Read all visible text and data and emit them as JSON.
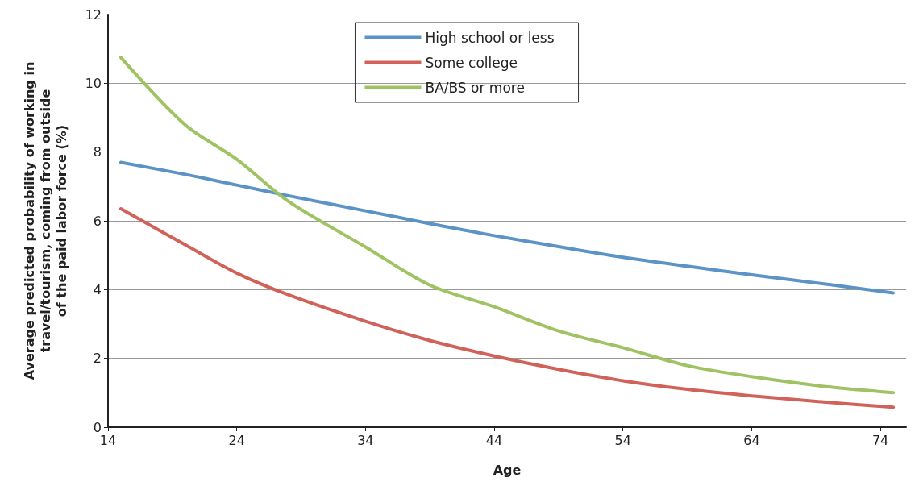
{
  "chart_data": {
    "type": "line",
    "xlabel": "Age",
    "ylabel": "Average predicted probability of working in\ntravel/tourism, coming from outside\nof the paid labor force (%)",
    "x": [
      15,
      20,
      24,
      28,
      34,
      39,
      44,
      49,
      54,
      59,
      64,
      70,
      75
    ],
    "series": [
      {
        "name": "High school or less",
        "color": "#5b93c7",
        "values": [
          7.7,
          7.35,
          7.04,
          6.73,
          6.29,
          5.92,
          5.57,
          5.25,
          4.94,
          4.68,
          4.43,
          4.15,
          3.9
        ]
      },
      {
        "name": "Some college",
        "color": "#d0625a",
        "values": [
          6.35,
          5.3,
          4.48,
          3.85,
          3.08,
          2.52,
          2.07,
          1.68,
          1.35,
          1.1,
          0.91,
          0.72,
          0.58
        ]
      },
      {
        "name": "BA/BS or more",
        "color": "#9fc262",
        "values": [
          10.75,
          8.79,
          7.79,
          6.57,
          5.24,
          4.13,
          3.5,
          2.8,
          2.31,
          1.79,
          1.47,
          1.17,
          1.0
        ]
      }
    ],
    "xlim": [
      14,
      76
    ],
    "xticks": [
      14,
      24,
      34,
      44,
      54,
      64,
      74
    ],
    "ylim": [
      0,
      12
    ],
    "yticks": [
      0,
      2,
      4,
      6,
      8,
      10,
      12
    ],
    "grid": "y",
    "legend": "top"
  }
}
